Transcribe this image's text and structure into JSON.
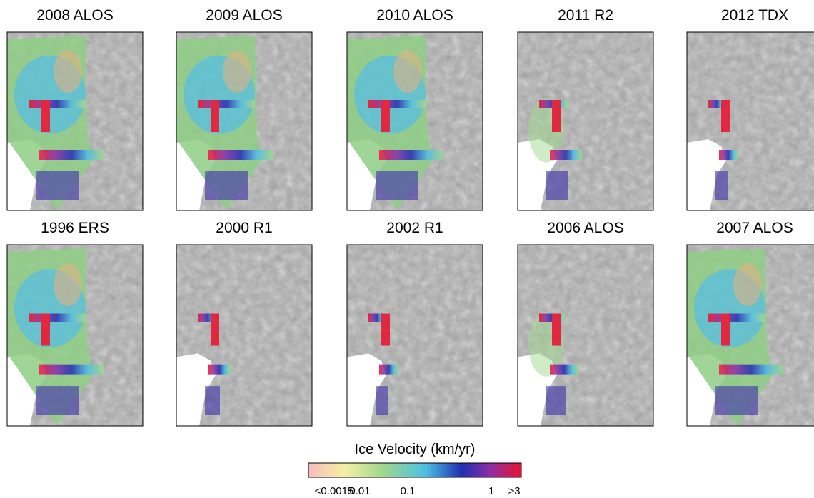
{
  "panels": [
    {
      "title": "2008 ALOS"
    },
    {
      "title": "2009 ALOS"
    },
    {
      "title": "2010 ALOS"
    },
    {
      "title": "2011 R2"
    },
    {
      "title": "2012 TDX"
    },
    {
      "title": "1996 ERS"
    },
    {
      "title": "2000 R1"
    },
    {
      "title": "2002 R1"
    },
    {
      "title": "2006 ALOS"
    },
    {
      "title": "2007 ALOS"
    }
  ],
  "colorbar": {
    "title": "Ice Velocity (km/yr)",
    "tick_labels": [
      "<0.0015",
      "0.01",
      "0.1",
      "1",
      ">3"
    ]
  }
}
